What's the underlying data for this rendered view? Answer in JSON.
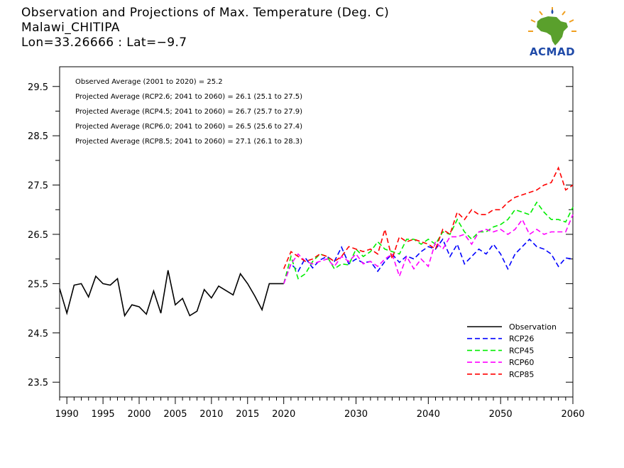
{
  "header": {
    "title": "Observation and Projections of Max. Temperature (Deg. C)",
    "location": "Malawi_CHITIPA",
    "coords": "Lon=33.26666 : Lat=−9.7"
  },
  "logo": {
    "name": "ACMAD",
    "icon": "africa-map-icon",
    "color": "#1f4aa8",
    "accent": "#f0a020",
    "land_color": "#5aa02c"
  },
  "annotations": [
    "Observed Average (2001 to 2020) = 25.2",
    "Projected Average (RCP2.6; 2041 to 2060) = 26.1 (25.1 to 27.5)",
    "Projected Average (RCP4.5; 2041 to 2060) = 26.7 (25.7 to 27.9)",
    "Projected Average (RCP6.0; 2041 to 2060) = 26.5 (25.6 to 27.4)",
    "Projected Average (RCP8.5; 2041 to 2060) = 27.1 (26.1 to 28.3)"
  ],
  "chart_data": {
    "type": "line",
    "xlim": [
      1989,
      2060
    ],
    "ylim": [
      23.2,
      29.9
    ],
    "x_ticks": [
      1990,
      1995,
      2000,
      2005,
      2010,
      2015,
      2020,
      2030,
      2040,
      2050,
      2060
    ],
    "x_tick_labels": [
      "1990",
      "1995",
      "2000",
      "2005",
      "2010",
      "2015",
      "2020",
      "2030",
      "2040",
      "2050",
      "2060"
    ],
    "y_ticks": [
      23.5,
      24.5,
      25.5,
      26.5,
      27.5,
      28.5,
      29.5
    ],
    "y_tick_labels": [
      "23.5",
      "24.5",
      "25.5",
      "26.5",
      "27.5",
      "28.5",
      "29.5"
    ],
    "legend_position": "bottom-right",
    "series": [
      {
        "name": "Observation",
        "color": "#000000",
        "dash": false,
        "x": [
          1989,
          1990,
          1991,
          1992,
          1993,
          1994,
          1995,
          1996,
          1997,
          1998,
          1999,
          2000,
          2001,
          2002,
          2003,
          2004,
          2005,
          2006,
          2007,
          2008,
          2009,
          2010,
          2011,
          2012,
          2013,
          2014,
          2015,
          2016,
          2017,
          2018,
          2019,
          2020
        ],
        "values": [
          25.4,
          24.9,
          25.47,
          25.5,
          25.23,
          25.65,
          25.5,
          25.47,
          25.6,
          24.85,
          25.07,
          25.03,
          24.88,
          25.35,
          24.9,
          25.77,
          25.07,
          25.2,
          24.85,
          24.94,
          25.38,
          25.21,
          25.45,
          25.36,
          25.27,
          25.7,
          25.5,
          25.25,
          24.97,
          25.5,
          25.5,
          25.5
        ]
      },
      {
        "name": "RCP26",
        "color": "#0000ff",
        "dash": true,
        "x": [
          2020,
          2021,
          2022,
          2023,
          2024,
          2025,
          2026,
          2027,
          2028,
          2029,
          2030,
          2031,
          2032,
          2033,
          2034,
          2035,
          2036,
          2037,
          2038,
          2039,
          2040,
          2041,
          2042,
          2043,
          2044,
          2045,
          2046,
          2047,
          2048,
          2049,
          2050,
          2051,
          2052,
          2053,
          2054,
          2055,
          2056,
          2057,
          2058,
          2059,
          2060
        ],
        "values": [
          25.5,
          25.9,
          25.75,
          26.02,
          25.82,
          25.98,
          26.05,
          25.95,
          26.24,
          25.9,
          26.0,
          25.92,
          25.95,
          25.75,
          25.95,
          26.1,
          25.93,
          26.06,
          26.0,
          26.15,
          26.25,
          26.2,
          26.4,
          26.05,
          26.3,
          25.9,
          26.05,
          26.2,
          26.1,
          26.3,
          26.1,
          25.8,
          26.1,
          26.25,
          26.4,
          26.25,
          26.2,
          26.1,
          25.85,
          26.02,
          26.0
        ]
      },
      {
        "name": "RCP45",
        "color": "#00ee00",
        "dash": true,
        "x": [
          2020,
          2021,
          2022,
          2023,
          2024,
          2025,
          2026,
          2027,
          2028,
          2029,
          2030,
          2031,
          2032,
          2033,
          2034,
          2035,
          2036,
          2037,
          2038,
          2039,
          2040,
          2041,
          2042,
          2043,
          2044,
          2045,
          2046,
          2047,
          2048,
          2049,
          2050,
          2051,
          2052,
          2053,
          2054,
          2055,
          2056,
          2057,
          2058,
          2059,
          2060
        ],
        "values": [
          25.5,
          26.05,
          25.6,
          25.7,
          25.95,
          26.1,
          26.05,
          25.8,
          25.9,
          25.88,
          26.2,
          26.05,
          26.15,
          26.35,
          26.2,
          26.15,
          26.1,
          26.4,
          26.4,
          26.3,
          26.4,
          26.3,
          26.55,
          26.5,
          26.8,
          26.55,
          26.4,
          26.55,
          26.55,
          26.65,
          26.7,
          26.8,
          27.0,
          26.95,
          26.9,
          27.15,
          26.95,
          26.8,
          26.8,
          26.75,
          27.05
        ]
      },
      {
        "name": "RCP60",
        "color": "#ff00ff",
        "dash": true,
        "x": [
          2020,
          2021,
          2022,
          2023,
          2024,
          2025,
          2026,
          2027,
          2028,
          2029,
          2030,
          2031,
          2032,
          2033,
          2034,
          2035,
          2036,
          2037,
          2038,
          2039,
          2040,
          2041,
          2042,
          2043,
          2044,
          2045,
          2046,
          2047,
          2048,
          2049,
          2050,
          2051,
          2052,
          2053,
          2054,
          2055,
          2056,
          2057,
          2058,
          2059,
          2060
        ],
        "values": [
          25.5,
          25.9,
          26.1,
          25.95,
          25.9,
          25.95,
          26.0,
          25.85,
          26.05,
          25.95,
          26.1,
          25.9,
          25.95,
          25.85,
          26.0,
          26.1,
          25.65,
          26.05,
          25.8,
          26.0,
          25.85,
          26.35,
          26.2,
          26.45,
          26.45,
          26.5,
          26.3,
          26.55,
          26.6,
          26.55,
          26.6,
          26.5,
          26.6,
          26.8,
          26.5,
          26.6,
          26.5,
          26.55,
          26.55,
          26.55,
          26.9
        ]
      },
      {
        "name": "RCP85",
        "color": "#ff0000",
        "dash": true,
        "x": [
          2020,
          2021,
          2022,
          2023,
          2024,
          2025,
          2026,
          2027,
          2028,
          2029,
          2030,
          2031,
          2032,
          2033,
          2034,
          2035,
          2036,
          2037,
          2038,
          2039,
          2040,
          2041,
          2042,
          2043,
          2044,
          2045,
          2046,
          2047,
          2048,
          2049,
          2050,
          2051,
          2052,
          2053,
          2054,
          2055,
          2056,
          2057,
          2058,
          2059,
          2060
        ],
        "values": [
          25.8,
          26.15,
          26.05,
          25.95,
          26.0,
          26.1,
          26.05,
          25.95,
          26.05,
          26.25,
          26.2,
          26.15,
          26.2,
          26.1,
          26.6,
          26.0,
          26.45,
          26.35,
          26.4,
          26.35,
          26.3,
          26.2,
          26.6,
          26.5,
          26.95,
          26.8,
          27.0,
          26.9,
          26.9,
          27.0,
          27.0,
          27.15,
          27.25,
          27.3,
          27.35,
          27.4,
          27.5,
          27.55,
          27.85,
          27.4,
          27.5
        ]
      }
    ]
  }
}
